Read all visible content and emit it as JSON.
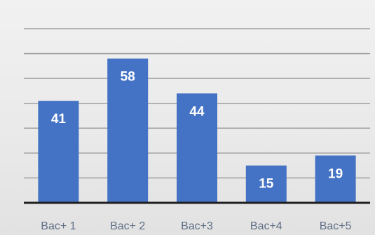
{
  "chart_data": {
    "type": "bar",
    "categories": [
      "Bac+ 1",
      "Bac+ 2",
      "Bac+3",
      "Bac+4",
      "Bac+5"
    ],
    "values": [
      41,
      58,
      44,
      15,
      19
    ],
    "data_labels": [
      "41",
      "58",
      "44",
      "15",
      "19"
    ],
    "title": "",
    "xlabel": "",
    "ylabel": "",
    "ylim": [
      0,
      70
    ],
    "grid": true,
    "legend": "none",
    "colors": {
      "bar": "#4472c4",
      "gridline": "#a0a0a0",
      "axis": "#1f1f1f",
      "data_label": "#ffffff",
      "tick_label": "#5f6f86"
    }
  }
}
